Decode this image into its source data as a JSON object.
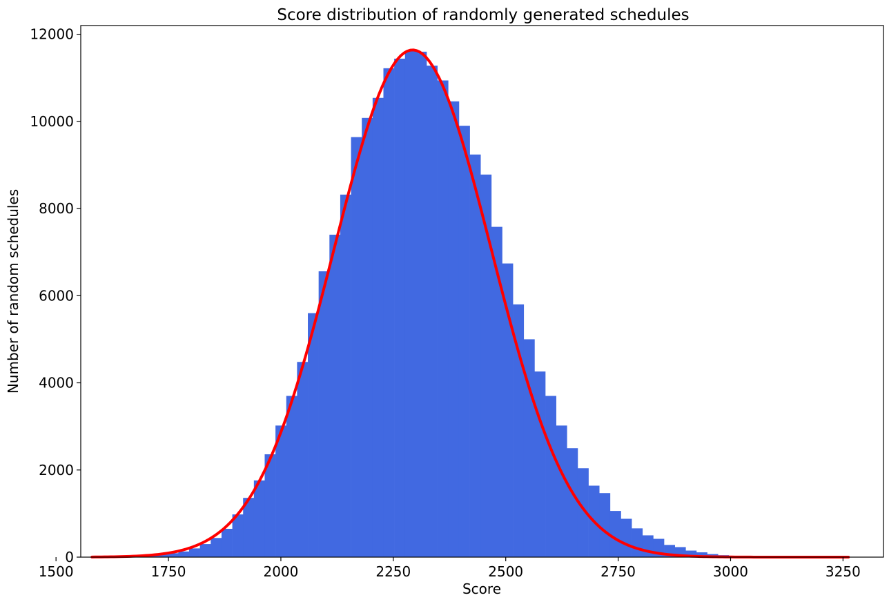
{
  "chart_data": {
    "type": "bar",
    "subtype": "histogram-with-fitted-curve",
    "title": "Score distribution of randomly generated schedules",
    "xlabel": "Score",
    "ylabel": "Number of random schedules",
    "xlim": [
      1555,
      3340
    ],
    "ylim": [
      0,
      12200
    ],
    "xticks": [
      1500,
      1750,
      2000,
      2250,
      2500,
      2750,
      3000,
      3250
    ],
    "yticks": [
      0,
      2000,
      4000,
      6000,
      8000,
      10000,
      12000
    ],
    "grid": false,
    "legend": "none",
    "bar_color": "#4169e1",
    "curve_color": "#ff0000",
    "bin_width": 24,
    "bins": [
      {
        "x": 1580,
        "y": 5
      },
      {
        "x": 1604,
        "y": 5
      },
      {
        "x": 1628,
        "y": 10
      },
      {
        "x": 1652,
        "y": 15
      },
      {
        "x": 1676,
        "y": 25
      },
      {
        "x": 1700,
        "y": 40
      },
      {
        "x": 1724,
        "y": 60
      },
      {
        "x": 1748,
        "y": 90
      },
      {
        "x": 1772,
        "y": 130
      },
      {
        "x": 1796,
        "y": 200
      },
      {
        "x": 1820,
        "y": 300
      },
      {
        "x": 1844,
        "y": 440
      },
      {
        "x": 1868,
        "y": 650
      },
      {
        "x": 1892,
        "y": 980
      },
      {
        "x": 1916,
        "y": 1360
      },
      {
        "x": 1940,
        "y": 1760
      },
      {
        "x": 1964,
        "y": 2360
      },
      {
        "x": 1988,
        "y": 3020
      },
      {
        "x": 2012,
        "y": 3700
      },
      {
        "x": 2036,
        "y": 4480
      },
      {
        "x": 2060,
        "y": 5600
      },
      {
        "x": 2084,
        "y": 6560
      },
      {
        "x": 2108,
        "y": 7400
      },
      {
        "x": 2132,
        "y": 8320
      },
      {
        "x": 2156,
        "y": 9640
      },
      {
        "x": 2180,
        "y": 10080
      },
      {
        "x": 2204,
        "y": 10540
      },
      {
        "x": 2228,
        "y": 11220
      },
      {
        "x": 2252,
        "y": 11440
      },
      {
        "x": 2276,
        "y": 11620
      },
      {
        "x": 2300,
        "y": 11600
      },
      {
        "x": 2324,
        "y": 11280
      },
      {
        "x": 2348,
        "y": 10940
      },
      {
        "x": 2372,
        "y": 10460
      },
      {
        "x": 2396,
        "y": 9900
      },
      {
        "x": 2420,
        "y": 9240
      },
      {
        "x": 2444,
        "y": 8780
      },
      {
        "x": 2468,
        "y": 7580
      },
      {
        "x": 2492,
        "y": 6740
      },
      {
        "x": 2516,
        "y": 5800
      },
      {
        "x": 2540,
        "y": 5000
      },
      {
        "x": 2564,
        "y": 4260
      },
      {
        "x": 2588,
        "y": 3700
      },
      {
        "x": 2612,
        "y": 3020
      },
      {
        "x": 2636,
        "y": 2500
      },
      {
        "x": 2660,
        "y": 2040
      },
      {
        "x": 2684,
        "y": 1640
      },
      {
        "x": 2708,
        "y": 1470
      },
      {
        "x": 2732,
        "y": 1060
      },
      {
        "x": 2756,
        "y": 880
      },
      {
        "x": 2780,
        "y": 660
      },
      {
        "x": 2804,
        "y": 500
      },
      {
        "x": 2828,
        "y": 420
      },
      {
        "x": 2852,
        "y": 280
      },
      {
        "x": 2876,
        "y": 230
      },
      {
        "x": 2900,
        "y": 150
      },
      {
        "x": 2924,
        "y": 110
      },
      {
        "x": 2948,
        "y": 70
      },
      {
        "x": 2972,
        "y": 45
      },
      {
        "x": 2996,
        "y": 30
      },
      {
        "x": 3020,
        "y": 20
      },
      {
        "x": 3044,
        "y": 15
      },
      {
        "x": 3068,
        "y": 10
      },
      {
        "x": 3092,
        "y": 8
      },
      {
        "x": 3116,
        "y": 5
      },
      {
        "x": 3140,
        "y": 5
      },
      {
        "x": 3164,
        "y": 3
      },
      {
        "x": 3188,
        "y": 3
      },
      {
        "x": 3212,
        "y": 2
      },
      {
        "x": 3236,
        "y": 2
      },
      {
        "x": 3260,
        "y": 1
      }
    ],
    "fit_curve": {
      "type": "normal",
      "mean": 2293,
      "sd": 175,
      "peak": 11640,
      "x_range": [
        1580,
        3262
      ]
    }
  }
}
